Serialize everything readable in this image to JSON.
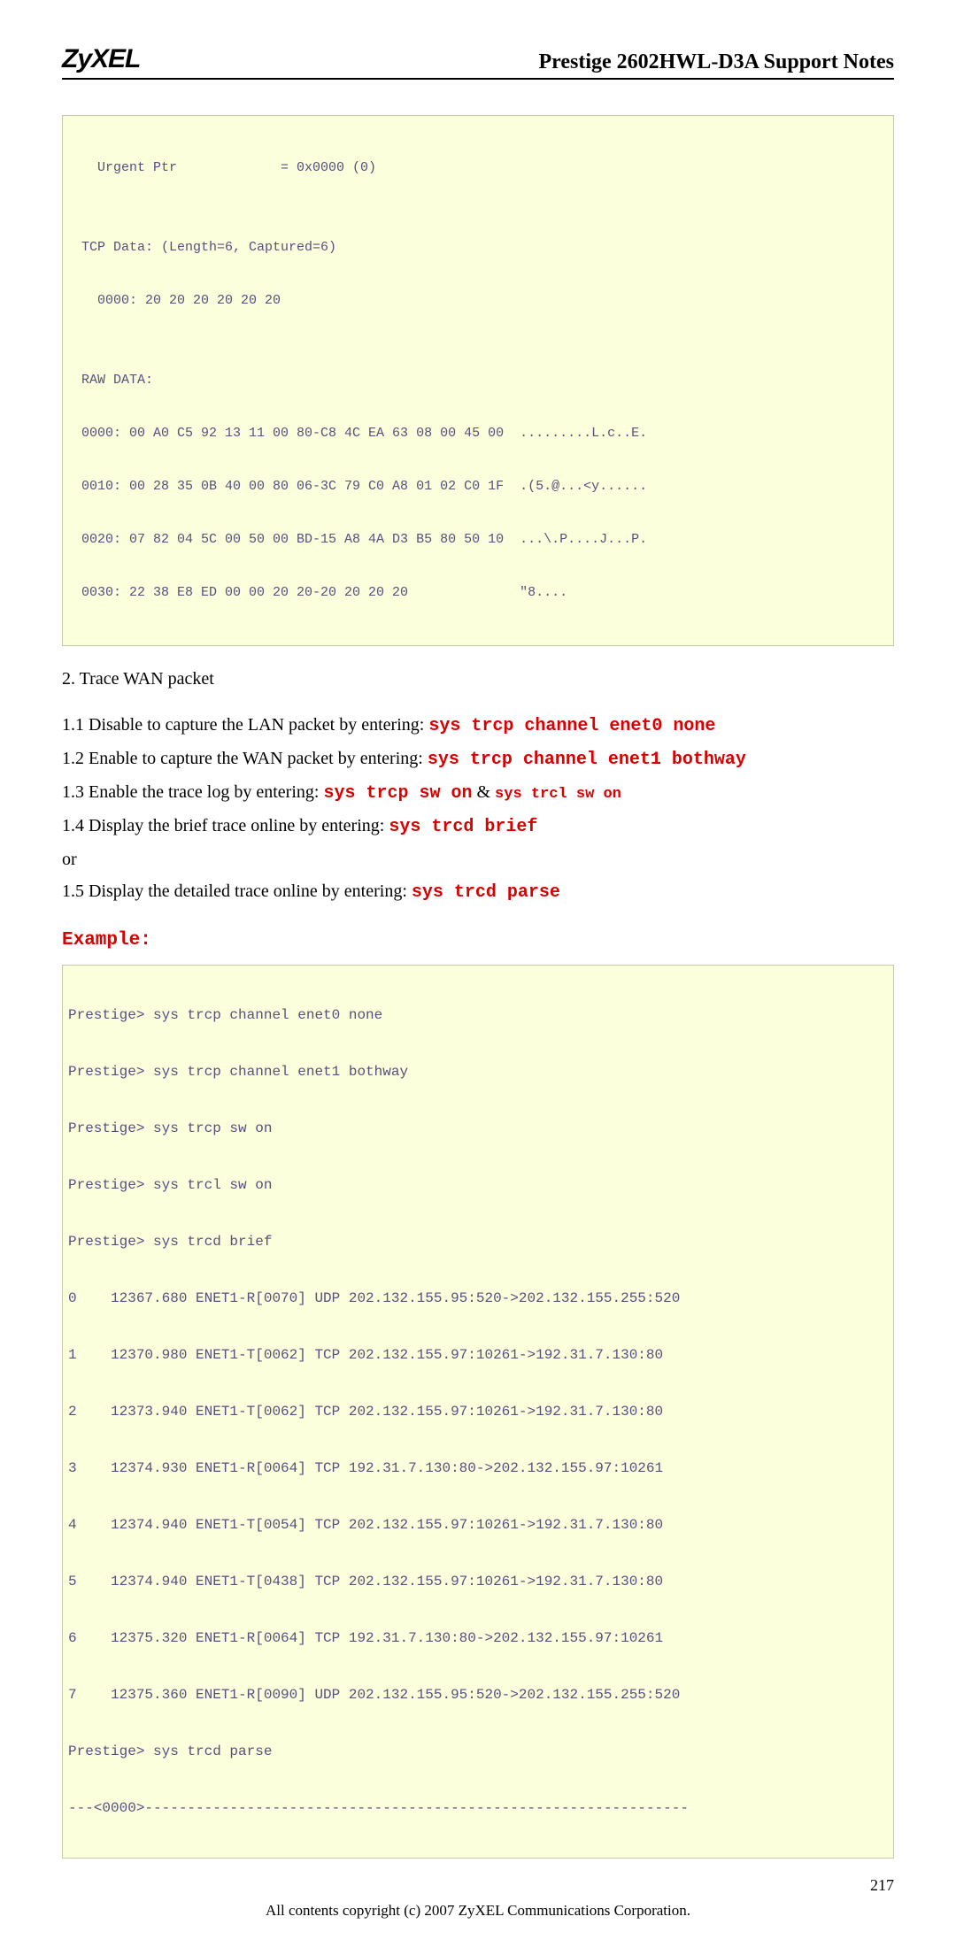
{
  "header": {
    "brand": "ZyXEL",
    "title": "Prestige 2602HWL-D3A Support Notes"
  },
  "codeblock1": {
    "lines": [
      "   Urgent Ptr             = 0x0000 (0)",
      "",
      " TCP Data: (Length=6, Captured=6)",
      "   0000: 20 20 20 20 20 20",
      "",
      " RAW DATA:",
      " 0000: 00 A0 C5 92 13 11 00 80-C8 4C EA 63 08 00 45 00  .........L.c..E.",
      " 0010: 00 28 35 0B 40 00 80 06-3C 79 C0 A8 01 02 C0 1F  .(5.@...<y......",
      " 0020: 07 82 04 5C 00 50 00 BD-15 A8 4A D3 B5 80 50 10  ...\\.P....J...P.",
      " 0030: 22 38 E8 ED 00 00 20 20-20 20 20 20              \"8....          "
    ]
  },
  "section2_title": "2. Trace WAN packet",
  "instructions": {
    "l1a": "1.1 Disable to capture the LAN packet by entering: ",
    "l1b": "sys trcp channel enet0 none",
    "l2a": "1.2 Enable to capture the WAN packet by entering: ",
    "l2b": "sys trcp channel enet1 bothway",
    "l3a": "1.3 Enable the trace log by entering: ",
    "l3b": "sys trcp sw on",
    "l3c": " & ",
    "l3d": "sys trcl sw on",
    "l4a": "1.4 Display the brief trace online by entering: ",
    "l4b": "sys trcd brief",
    "or": "or",
    "l5a": "1.5 Display the detailed trace online by entering: ",
    "l5b": "sys trcd parse"
  },
  "example_label": "Example:",
  "codeblock2": {
    "lines": [
      "Prestige> sys trcp channel enet0 none",
      "Prestige> sys trcp channel enet1 bothway",
      "Prestige> sys trcp sw on",
      "Prestige> sys trcl sw on",
      "Prestige> sys trcd brief",
      "0    12367.680 ENET1-R[0070] UDP 202.132.155.95:520->202.132.155.255:520",
      "1    12370.980 ENET1-T[0062] TCP 202.132.155.97:10261->192.31.7.130:80",
      "2    12373.940 ENET1-T[0062] TCP 202.132.155.97:10261->192.31.7.130:80",
      "3    12374.930 ENET1-R[0064] TCP 192.31.7.130:80->202.132.155.97:10261",
      "4    12374.940 ENET1-T[0054] TCP 202.132.155.97:10261->192.31.7.130:80",
      "5    12374.940 ENET1-T[0438] TCP 202.132.155.97:10261->192.31.7.130:80",
      "6    12375.320 ENET1-R[0064] TCP 192.31.7.130:80->202.132.155.97:10261",
      "7    12375.360 ENET1-R[0090] UDP 202.132.155.95:520->202.132.155.255:520",
      "Prestige> sys trcd parse",
      "---<0000>----------------------------------------------------------------"
    ]
  },
  "page_number": "217",
  "footer": "All contents copyright (c) 2007 ZyXEL Communications Corporation."
}
